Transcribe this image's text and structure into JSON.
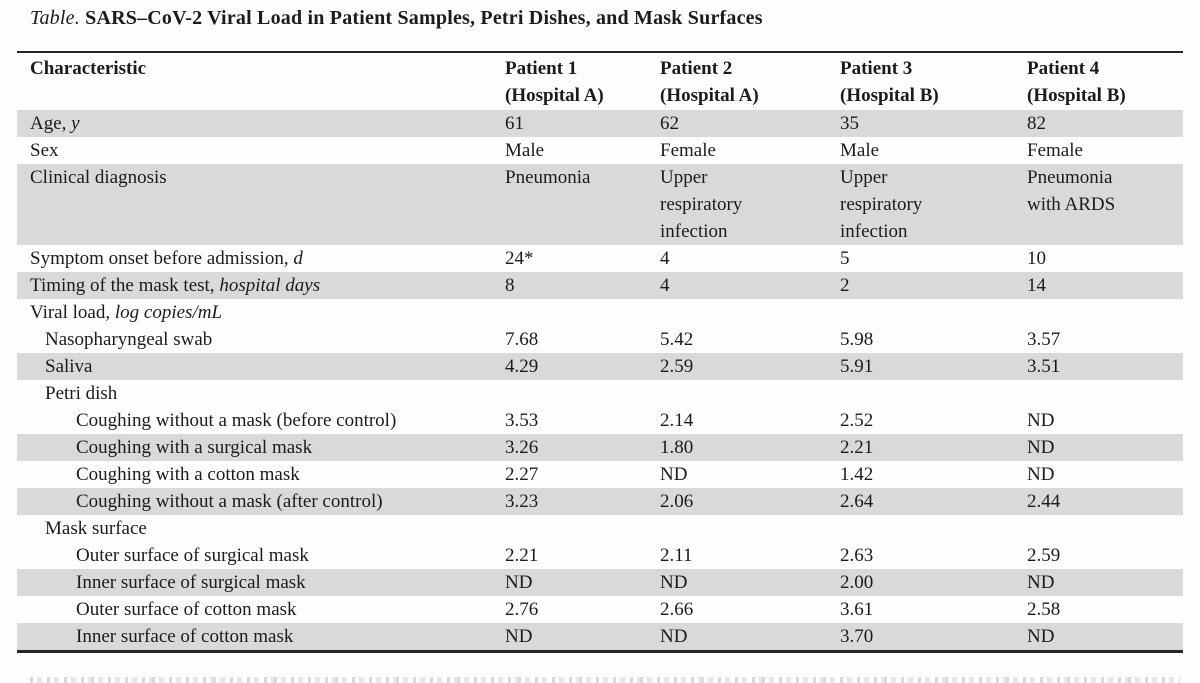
{
  "title": {
    "prefix": "Table.",
    "rest": "SARS–CoV-2 Viral Load in Patient Samples, Petri Dishes, and Mask Surfaces"
  },
  "table": {
    "header": {
      "characteristic": "Characteristic",
      "patients": [
        {
          "line1": "Patient 1",
          "line2": "(Hospital A)"
        },
        {
          "line1": "Patient 2",
          "line2": "(Hospital A)"
        },
        {
          "line1": "Patient 3",
          "line2": "(Hospital B)"
        },
        {
          "line1": "Patient 4",
          "line2": "(Hospital B)"
        }
      ]
    },
    "rows": [
      {
        "label": "Age,",
        "label_italic": "y",
        "indent": 0,
        "shaded": true,
        "values": [
          "61",
          "62",
          "35",
          "82"
        ]
      },
      {
        "label": "Sex",
        "label_italic": "",
        "indent": 0,
        "shaded": false,
        "values": [
          "Male",
          "Female",
          "Male",
          "Female"
        ]
      },
      {
        "label": "Clinical diagnosis",
        "label_italic": "",
        "indent": 0,
        "shaded": true,
        "values": [
          "Pneumonia",
          "Upper\nrespiratory\ninfection",
          "Upper\nrespiratory\ninfection",
          "Pneumonia\nwith ARDS"
        ]
      },
      {
        "label": "Symptom onset before admission,",
        "label_italic": "d",
        "indent": 0,
        "shaded": false,
        "values": [
          "24*",
          "4",
          "5",
          "10"
        ]
      },
      {
        "label": "Timing of the mask test,",
        "label_italic": "hospital days",
        "indent": 0,
        "shaded": true,
        "values": [
          "8",
          "4",
          "2",
          "14"
        ]
      },
      {
        "label": "Viral load,",
        "label_italic": "log copies/mL",
        "indent": 0,
        "shaded": false,
        "values": [
          "",
          "",
          "",
          ""
        ]
      },
      {
        "label": "Nasopharyngeal swab",
        "label_italic": "",
        "indent": 1,
        "shaded": false,
        "values": [
          "7.68",
          "5.42",
          "5.98",
          "3.57"
        ]
      },
      {
        "label": "Saliva",
        "label_italic": "",
        "indent": 1,
        "shaded": true,
        "values": [
          "4.29",
          "2.59",
          "5.91",
          "3.51"
        ]
      },
      {
        "label": "Petri dish",
        "label_italic": "",
        "indent": 1,
        "shaded": false,
        "values": [
          "",
          "",
          "",
          ""
        ]
      },
      {
        "label": "Coughing without a mask (before control)",
        "label_italic": "",
        "indent": 2,
        "shaded": false,
        "values": [
          "3.53",
          "2.14",
          "2.52",
          "ND"
        ]
      },
      {
        "label": "Coughing with a surgical mask",
        "label_italic": "",
        "indent": 2,
        "shaded": true,
        "values": [
          "3.26",
          "1.80",
          "2.21",
          "ND"
        ]
      },
      {
        "label": "Coughing with a cotton mask",
        "label_italic": "",
        "indent": 2,
        "shaded": false,
        "values": [
          "2.27",
          "ND",
          "1.42",
          "ND"
        ]
      },
      {
        "label": "Coughing without a mask (after control)",
        "label_italic": "",
        "indent": 2,
        "shaded": true,
        "values": [
          "3.23",
          "2.06",
          "2.64",
          "2.44"
        ]
      },
      {
        "label": "Mask surface",
        "label_italic": "",
        "indent": 1,
        "shaded": false,
        "values": [
          "",
          "",
          "",
          ""
        ]
      },
      {
        "label": "Outer surface of surgical mask",
        "label_italic": "",
        "indent": 2,
        "shaded": false,
        "values": [
          "2.21",
          "2.11",
          "2.63",
          "2.59"
        ]
      },
      {
        "label": "Inner surface of surgical mask",
        "label_italic": "",
        "indent": 2,
        "shaded": true,
        "values": [
          "ND",
          "ND",
          "2.00",
          "ND"
        ]
      },
      {
        "label": "Outer surface of cotton mask",
        "label_italic": "",
        "indent": 2,
        "shaded": false,
        "values": [
          "2.76",
          "2.66",
          "3.61",
          "2.58"
        ]
      },
      {
        "label": "Inner surface of cotton mask",
        "label_italic": "",
        "indent": 2,
        "shaded": true,
        "values": [
          "ND",
          "ND",
          "3.70",
          "ND"
        ]
      }
    ],
    "colors": {
      "shaded_row": "#d9d9d9",
      "rule": "#262626",
      "text": "#1b1b1b"
    }
  }
}
